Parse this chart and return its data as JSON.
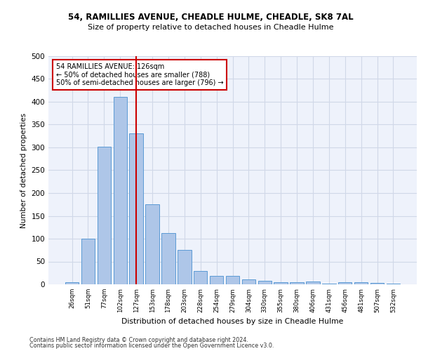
{
  "title1": "54, RAMILLIES AVENUE, CHEADLE HULME, CHEADLE, SK8 7AL",
  "title2": "Size of property relative to detached houses in Cheadle Hulme",
  "xlabel": "Distribution of detached houses by size in Cheadle Hulme",
  "ylabel": "Number of detached properties",
  "categories": [
    "26sqm",
    "51sqm",
    "77sqm",
    "102sqm",
    "127sqm",
    "153sqm",
    "178sqm",
    "203sqm",
    "228sqm",
    "254sqm",
    "279sqm",
    "304sqm",
    "330sqm",
    "355sqm",
    "380sqm",
    "406sqm",
    "431sqm",
    "456sqm",
    "481sqm",
    "507sqm",
    "532sqm"
  ],
  "values": [
    5,
    100,
    302,
    410,
    330,
    176,
    112,
    76,
    30,
    18,
    19,
    11,
    7,
    4,
    4,
    6,
    1,
    4,
    5,
    3,
    2
  ],
  "bar_color": "#aec6e8",
  "bar_edge_color": "#5b9bd5",
  "vline_index": 4,
  "vline_color": "#cc0000",
  "annotation_text": "54 RAMILLIES AVENUE: 126sqm\n← 50% of detached houses are smaller (788)\n50% of semi-detached houses are larger (796) →",
  "annotation_box_color": "#ffffff",
  "annotation_box_edge": "#cc0000",
  "ylim": [
    0,
    500
  ],
  "yticks": [
    0,
    50,
    100,
    150,
    200,
    250,
    300,
    350,
    400,
    450,
    500
  ],
  "grid_color": "#d0d8e8",
  "bg_color": "#eef2fb",
  "footer1": "Contains HM Land Registry data © Crown copyright and database right 2024.",
  "footer2": "Contains public sector information licensed under the Open Government Licence v3.0."
}
